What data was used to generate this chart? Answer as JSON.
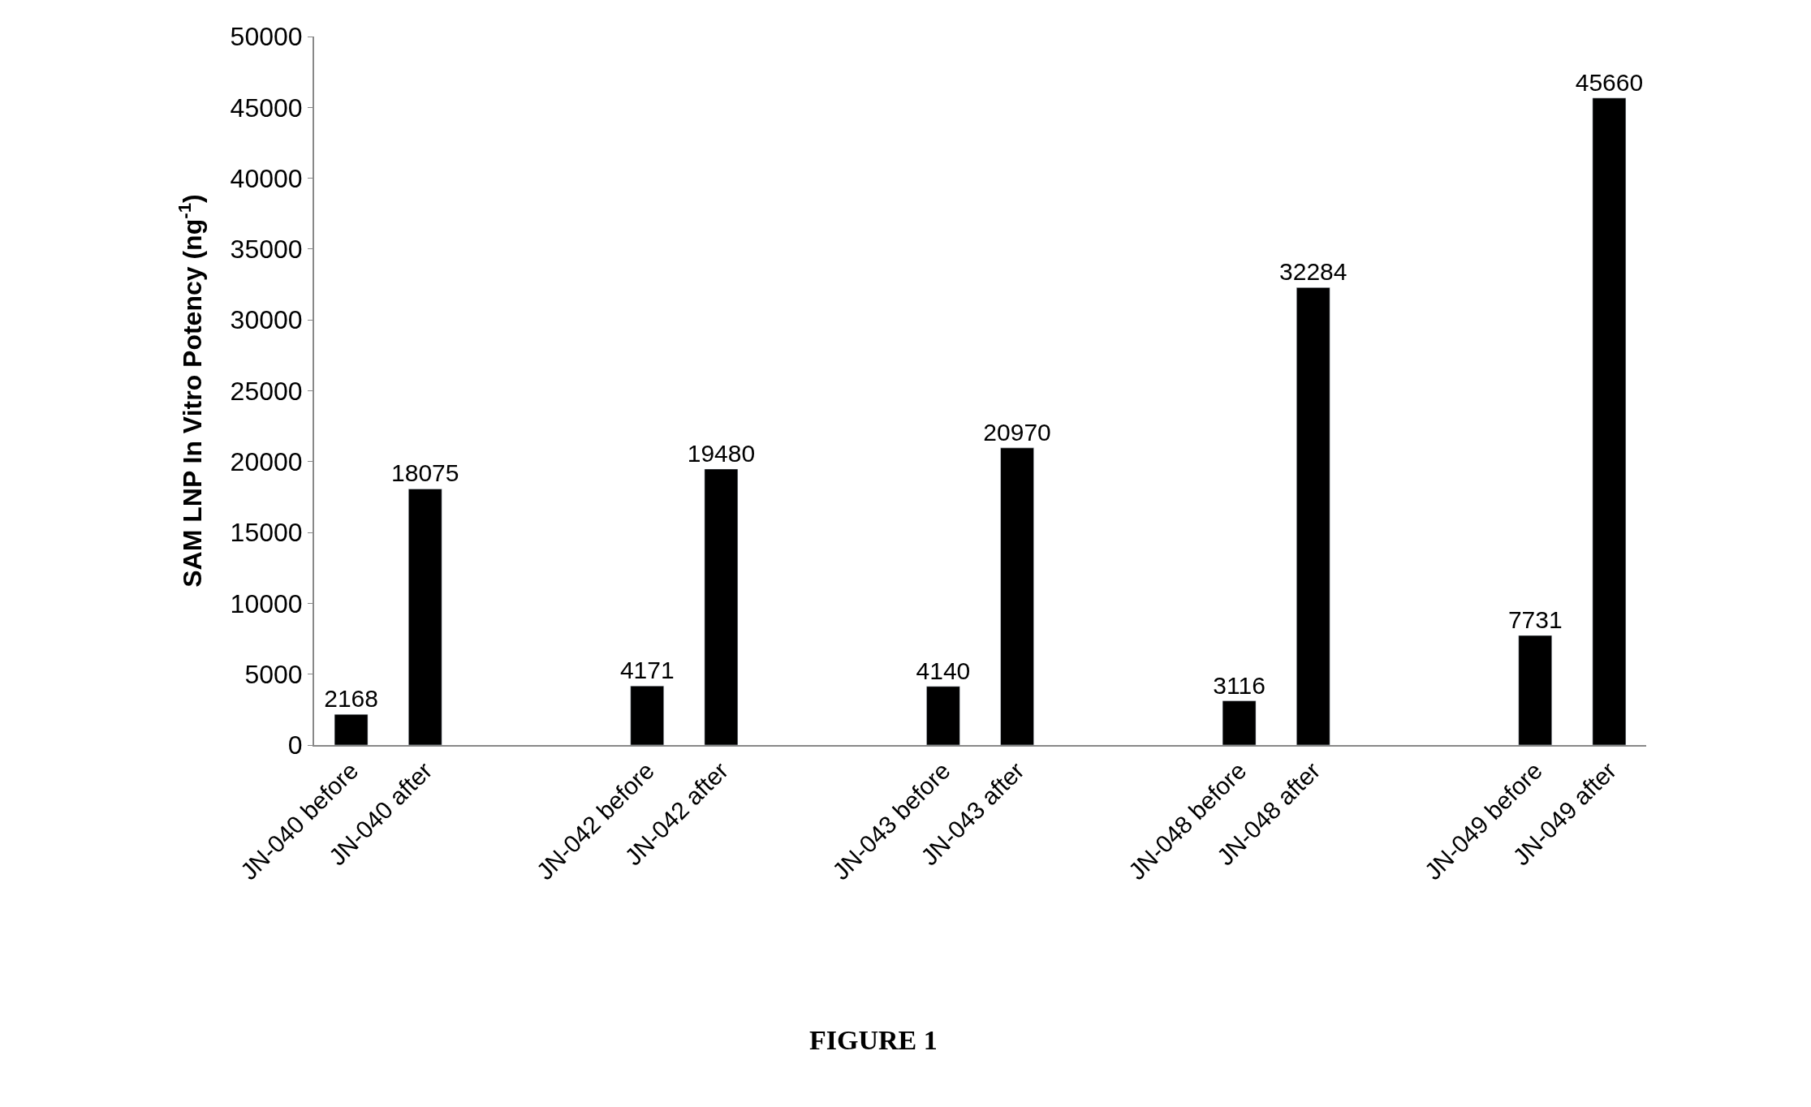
{
  "chart_data": {
    "type": "bar",
    "categories": [
      "JN-040 before",
      "JN-040 after",
      null,
      null,
      "JN-042 before",
      "JN-042 after",
      null,
      null,
      "JN-043 before",
      "JN-043 after",
      null,
      null,
      "JN-048 before",
      "JN-048 after",
      null,
      null,
      "JN-049 before",
      "JN-049 after"
    ],
    "values": [
      2168,
      18075,
      null,
      null,
      4171,
      19480,
      null,
      null,
      4140,
      20970,
      null,
      null,
      3116,
      32284,
      null,
      null,
      7731,
      45660
    ],
    "color": "#000000",
    "ylabel": "SAM LNP In Vitro Potency (ng$^{-1}$)",
    "ylim": [
      0,
      50000
    ],
    "yticks": [
      0,
      5000,
      10000,
      15000,
      20000,
      25000,
      30000,
      35000,
      40000,
      45000,
      50000
    ],
    "data_labels": true,
    "legend": false,
    "annotations": [
      "FIGURE 1"
    ]
  }
}
